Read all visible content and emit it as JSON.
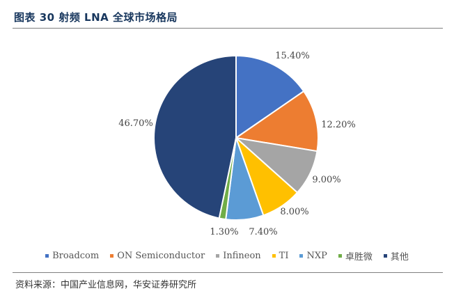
{
  "header": {
    "title": "图表 30 射频 LNA 全球市场格局"
  },
  "footer": {
    "source": "资料来源：中国产业信息网，华安证券研究所"
  },
  "chart_data": {
    "type": "pie",
    "title": "",
    "value_suffix": "%",
    "start_angle_deg": 0,
    "direction": "clockwise",
    "legend_position": "bottom",
    "categories": [
      "Broadcom",
      "ON Semiconductor",
      "Infineon",
      "TI",
      "NXP",
      "卓胜微",
      "其他"
    ],
    "values": [
      15.4,
      12.2,
      9.0,
      8.0,
      7.4,
      1.3,
      46.7
    ],
    "labels": [
      "15.40%",
      "12.20%",
      "9.00%",
      "8.00%",
      "7.40%",
      "1.30%",
      "46.70%"
    ],
    "colors": [
      "#4472c4",
      "#ed7d31",
      "#a5a5a5",
      "#ffc000",
      "#5b9bd5",
      "#70ad47",
      "#264478"
    ]
  }
}
